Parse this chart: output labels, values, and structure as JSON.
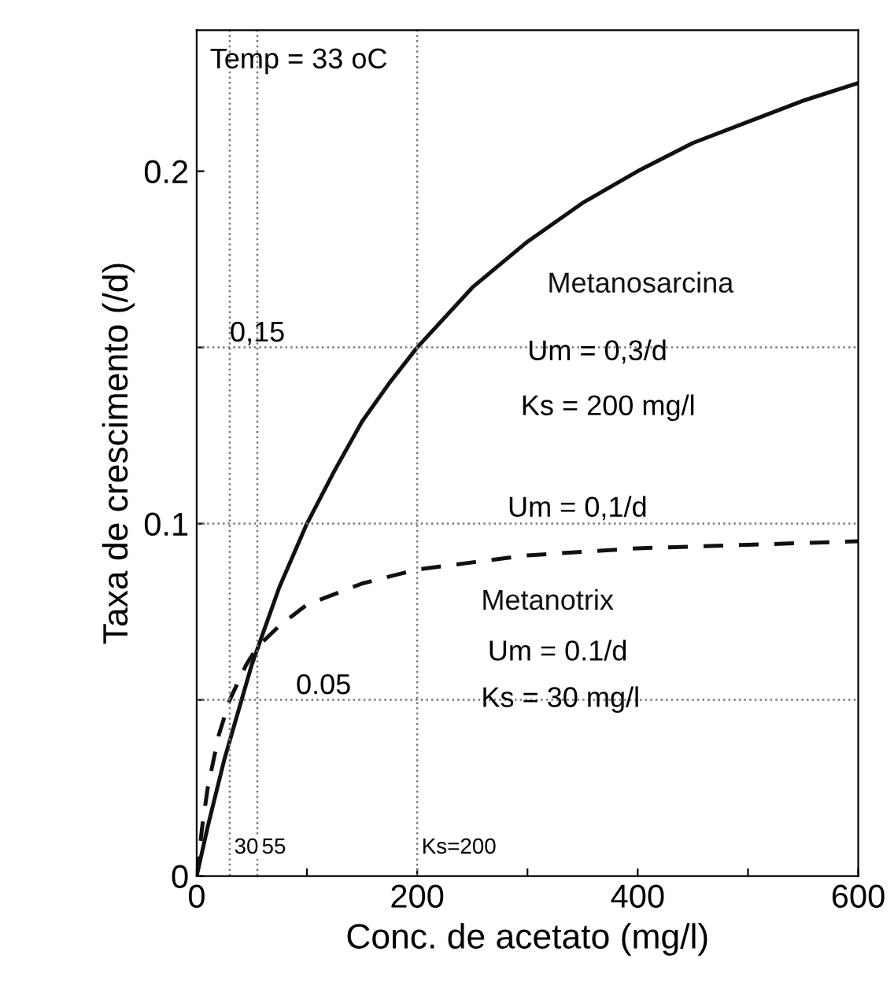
{
  "chart_data": {
    "type": "line",
    "xlabel": "Conc. de acetato (mg/l)",
    "ylabel": "Taxa de crescimento (/d)",
    "xlim": [
      0,
      600
    ],
    "xticks": [
      0,
      {
        "value": 100,
        "label": null
      },
      200,
      {
        "value": 300,
        "label": null
      },
      400,
      {
        "value": 500,
        "label": null
      },
      600
    ],
    "ylim": [
      0,
      0.24
    ],
    "yticks": [
      0,
      {
        "value": 0.05,
        "label": null
      },
      0.1,
      {
        "value": 0.15,
        "label": null
      },
      0.2
    ],
    "grid": false,
    "legend": false,
    "series": [
      {
        "name": "Metanosarcina",
        "color": "#111111",
        "line_style": "solid",
        "x": [
          0,
          10,
          25,
          50,
          75,
          100,
          125,
          150,
          175,
          200,
          250,
          300,
          350,
          400,
          450,
          500,
          550,
          600
        ],
        "values": [
          0,
          0.014,
          0.033,
          0.06,
          0.082,
          0.1,
          0.115,
          0.129,
          0.14,
          0.15,
          0.167,
          0.18,
          0.191,
          0.2,
          0.208,
          0.214,
          0.22,
          0.225
        ]
      },
      {
        "name": "Metanotrix",
        "color": "#111111",
        "line_style": "dashed",
        "x": [
          0,
          5,
          10,
          20,
          30,
          45,
          55,
          75,
          100,
          150,
          200,
          250,
          300,
          400,
          500,
          600
        ],
        "values": [
          0,
          0.014,
          0.025,
          0.04,
          0.05,
          0.06,
          0.065,
          0.071,
          0.077,
          0.083,
          0.087,
          0.089,
          0.091,
          0.093,
          0.094,
          0.095
        ]
      }
    ],
    "ref_lines": [
      {
        "axis": "y",
        "value": 0.15,
        "label": "0,15"
      },
      {
        "axis": "y",
        "value": 0.1,
        "label": null
      },
      {
        "axis": "y",
        "value": 0.05,
        "label": "0.05"
      },
      {
        "axis": "x",
        "value": 30,
        "label": "30"
      },
      {
        "axis": "x",
        "value": 55,
        "label": "55"
      },
      {
        "axis": "x",
        "value": 200,
        "label": "Ks=200"
      }
    ],
    "annotations": [
      "Temp = 33 oC",
      "Um = 0,3/d",
      "Ks = 200 mg/l",
      "Um = 0,1/d",
      "Um = 0.1/d",
      "Ks = 30 mg/l"
    ]
  }
}
